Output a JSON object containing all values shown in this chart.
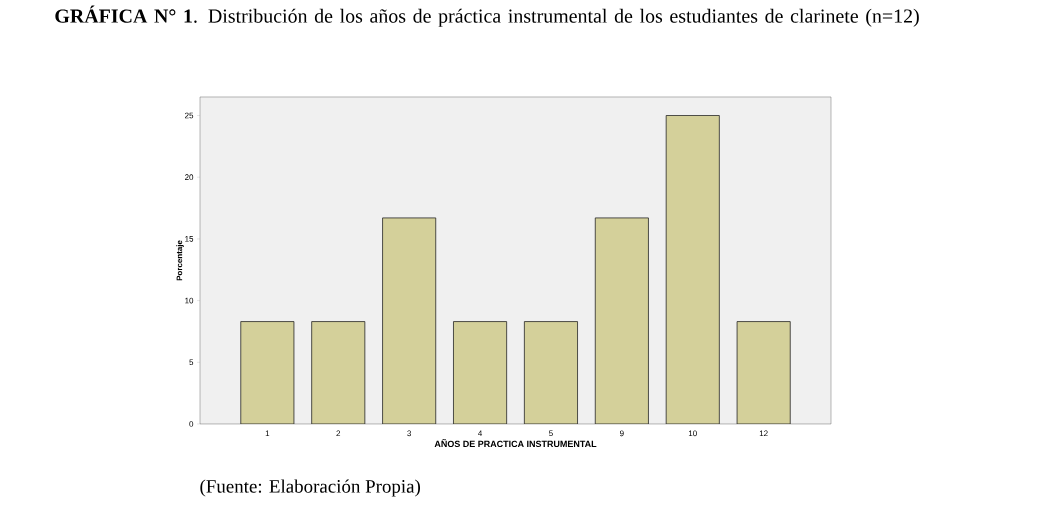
{
  "chart_data": {
    "type": "bar",
    "title": "**GRÁFICA N° 1**. Distribución de los años de práctica instrumental de los estudiantes de clarinete (n=12)",
    "categories": [
      "1",
      "2",
      "3",
      "4",
      "5",
      "9",
      "10",
      "12"
    ],
    "values": [
      8.3,
      8.3,
      16.7,
      8.3,
      8.3,
      16.7,
      25,
      8.3
    ],
    "color": "#d4d09a",
    "xlabel": "AÑOS DE PRACTICA INSTRUMENTAL",
    "ylabel": "Porcentaje",
    "ylim": [
      0,
      26.5
    ],
    "yticks": [
      0,
      5,
      10,
      15,
      20,
      25
    ],
    "annotations": [
      "(Fuente: Elaboración Propia)"
    ]
  }
}
